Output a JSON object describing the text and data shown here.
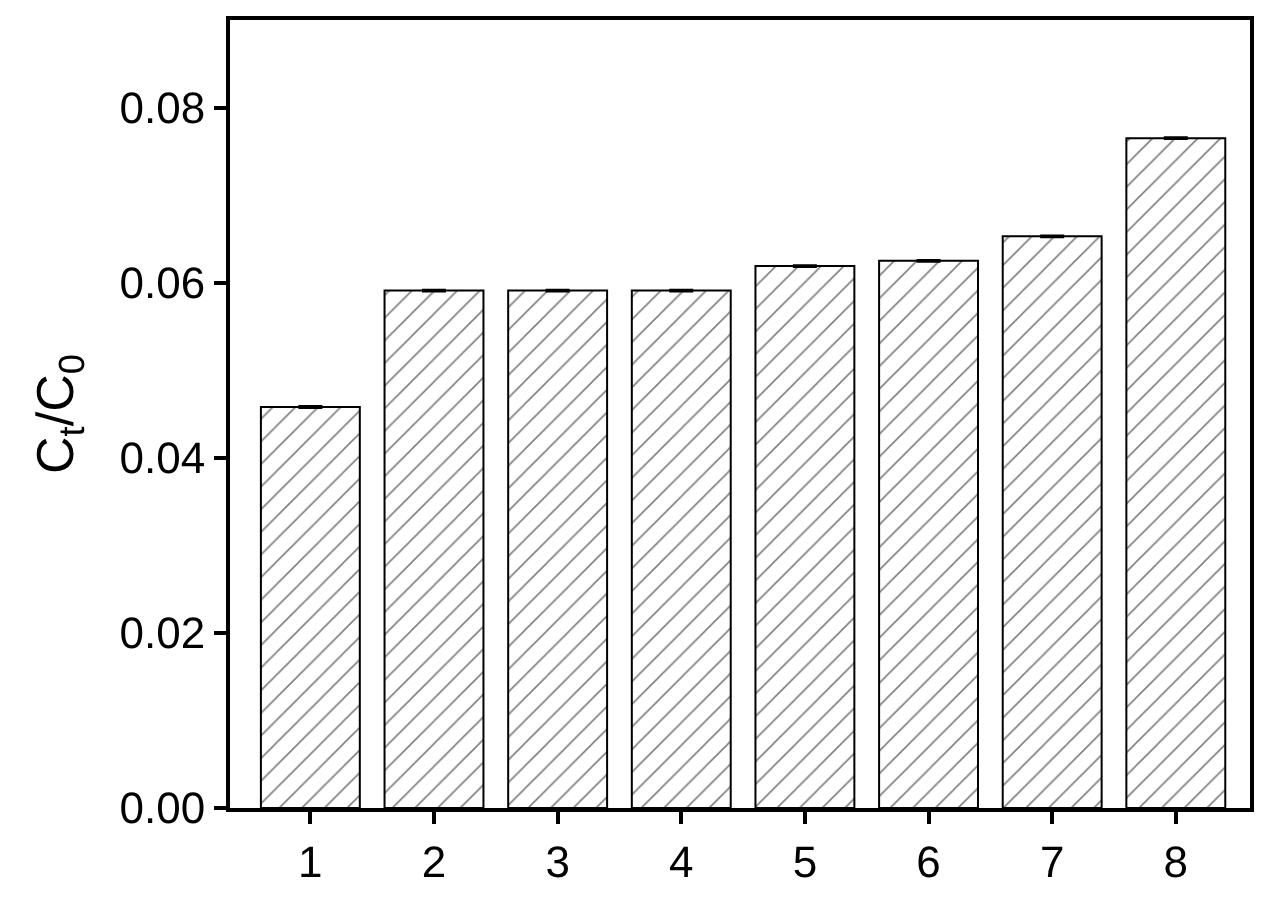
{
  "chart_data": {
    "type": "bar",
    "ylabel": "C$_{t}$/C$_{0}$",
    "categories": [
      "1",
      "2",
      "3",
      "4",
      "5",
      "6",
      "7",
      "8"
    ],
    "values": [
      0.0458,
      0.0591,
      0.0591,
      0.0591,
      0.0619,
      0.0625,
      0.0653,
      0.0765
    ],
    "errors": [
      0.0001,
      0.0001,
      0.0001,
      0.0001,
      0.0001,
      0.0001,
      0.0001,
      0.0001
    ],
    "color": "#000000",
    "ylim": [
      0,
      0.09
    ],
    "yticks": [
      {
        "value": 0,
        "label": "0.00"
      },
      {
        "value": 0.02,
        "label": "0.02"
      },
      {
        "value": 0.04,
        "label": "0.04"
      },
      {
        "value": 0.06,
        "label": "0.06"
      },
      {
        "value": 0.08,
        "label": "0.08"
      }
    ]
  }
}
